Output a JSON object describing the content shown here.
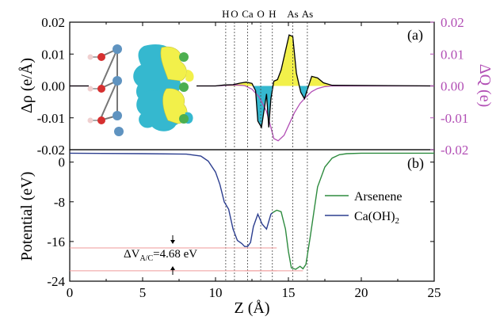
{
  "chart_data": [
    {
      "panel_label": "(a)",
      "type": "line",
      "xlim": [
        0,
        25
      ],
      "ylim_left": [
        -0.02,
        0.02
      ],
      "ylim_right": [
        -0.02,
        0.02
      ],
      "ylabel_left": "Δρ (e/Å)",
      "ylabel_right": "ΔQ (e)",
      "yticks_left": [
        "0.02",
        "0.01",
        "0.00",
        "-0.01",
        "-0.02"
      ],
      "yticks_right": [
        "0.02",
        "0.01",
        "0.00",
        "-0.01",
        "-0.02"
      ],
      "atom_labels": [
        {
          "text": "H",
          "z": 10.7
        },
        {
          "text": "O",
          "z": 11.3
        },
        {
          "text": "Ca",
          "z": 12.2
        },
        {
          "text": "O",
          "z": 13.1
        },
        {
          "text": "H",
          "z": 13.9
        },
        {
          "text": "As",
          "z": 15.3
        },
        {
          "text": "As",
          "z": 16.3
        }
      ],
      "series": [
        {
          "role": "delta_rho",
          "color": "#000000",
          "fill_positive": "#f2f04a",
          "fill_negative": "#35b8cf",
          "x": [
            0,
            8.0,
            10.0,
            10.6,
            11.2,
            11.7,
            12.1,
            12.5,
            12.75,
            12.9,
            13.15,
            13.5,
            13.65,
            13.8,
            14.0,
            14.25,
            14.5,
            14.8,
            15.05,
            15.3,
            15.55,
            15.85,
            16.1,
            16.35,
            16.6,
            17.0,
            17.4,
            18.0,
            25
          ],
          "y": [
            0,
            0,
            0,
            0.0003,
            0.0004,
            0.0009,
            0.0012,
            0.0008,
            -0.0015,
            -0.011,
            -0.013,
            -0.0025,
            -0.013,
            -0.004,
            0.0015,
            0.002,
            0.005,
            0.011,
            0.016,
            0.0155,
            0.004,
            -0.002,
            -0.004,
            -0.0005,
            0.003,
            0.0025,
            0.001,
            0.0002,
            0
          ]
        },
        {
          "role": "delta_Q",
          "color": "#b24fb5",
          "x": [
            0,
            1.0,
            10.0,
            10.8,
            11.5,
            12.0,
            12.5,
            13.0,
            13.5,
            13.8,
            14.0,
            14.3,
            14.7,
            15.0,
            15.4,
            15.8,
            16.2,
            16.6,
            17.0,
            17.5,
            18.0,
            18.5,
            19.5,
            25
          ],
          "y": [
            0,
            0,
            0,
            0.0002,
            0.0003,
            0.0001,
            -0.001,
            -0.0035,
            -0.008,
            -0.013,
            -0.0165,
            -0.0172,
            -0.0155,
            -0.0125,
            -0.0085,
            -0.0055,
            -0.0035,
            -0.0018,
            -0.0008,
            -0.0002,
            0,
            0,
            0,
            0
          ]
        }
      ]
    },
    {
      "panel_label": "(b)",
      "type": "line",
      "xlabel": "Z (Å)",
      "ylabel": "Potential (eV)",
      "xlim": [
        0,
        25
      ],
      "ylim": [
        -24,
        2.5
      ],
      "xticks": [
        "0",
        "5",
        "10",
        "15",
        "20",
        "25"
      ],
      "yticks": [
        "0",
        "-8",
        "-16",
        "-24"
      ],
      "legend_position": "right",
      "annotation": {
        "text_main": "ΔV",
        "text_sub": "A/C",
        "text_value": "=4.68 eV",
        "z": 7.0
      },
      "reference_lines": [
        {
          "y": -17.3,
          "color": "#ef9a9a"
        },
        {
          "y": -21.9,
          "color": "#ef9a9a"
        }
      ],
      "series": [
        {
          "name_main": "Arsenene",
          "name_sub": "",
          "color": "#2e8b3f",
          "x": [
            13.9,
            14.2,
            14.5,
            14.8,
            15.0,
            15.2,
            15.5,
            15.8,
            16.0,
            16.2,
            16.5,
            16.8,
            17.0,
            17.5,
            18.0,
            18.5,
            19.0,
            20.0,
            25.0
          ],
          "y": [
            -10.2,
            -9.7,
            -10.0,
            -13.5,
            -18.0,
            -21.3,
            -21.6,
            -21.0,
            -21.5,
            -20.6,
            -15.0,
            -9.0,
            -5.0,
            -1.0,
            0.8,
            1.5,
            1.7,
            1.8,
            1.8
          ]
        },
        {
          "name_main": "Ca(OH)",
          "name_sub": "2",
          "color": "#2c3e8f",
          "x": [
            0,
            5,
            8,
            9,
            9.5,
            10.0,
            10.3,
            10.6,
            10.9,
            11.2,
            11.5,
            11.8,
            12.0,
            12.2,
            12.4,
            12.6,
            12.9,
            13.2,
            13.5,
            13.8,
            13.9
          ],
          "y": [
            1.8,
            1.7,
            1.6,
            1.2,
            0.2,
            -2.0,
            -4.5,
            -8.0,
            -9.5,
            -13.5,
            -15.8,
            -16.4,
            -17.0,
            -17.0,
            -16.2,
            -13.0,
            -10.5,
            -12.5,
            -13.5,
            -10.5,
            -10.2
          ]
        }
      ]
    }
  ],
  "inset": {
    "image_name": "charge-density-isosurface-inset",
    "colors": {
      "positive": "#f2f04a",
      "negative": "#35b8cf",
      "Ca": "#5f93c0",
      "O": "#d63030",
      "H": "#f0d0d0",
      "As": "#4caf50"
    }
  }
}
